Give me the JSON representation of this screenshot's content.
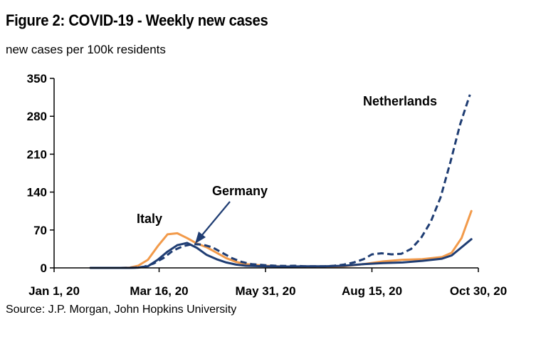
{
  "header": {
    "title": "Figure 2: COVID-19 - Weekly new cases",
    "subtitle": "new cases per 100k residents"
  },
  "footer": {
    "source": "Source: J.P. Morgan, John Hopkins University"
  },
  "colors": {
    "navy": "#1f3d73",
    "orange": "#f29a4a",
    "axis": "#000000"
  },
  "chart_data": {
    "type": "line",
    "x_axis": {
      "type": "date",
      "range": [
        "2020-01-01",
        "2020-10-30"
      ],
      "ticks": [
        {
          "date": "2020-01-01",
          "label": "Jan 1, 20"
        },
        {
          "date": "2020-03-16",
          "label": "Mar 16, 20"
        },
        {
          "date": "2020-05-31",
          "label": "May 31, 20"
        },
        {
          "date": "2020-08-15",
          "label": "Aug 15, 20"
        },
        {
          "date": "2020-10-30",
          "label": "Oct 30, 20"
        }
      ]
    },
    "y_axis": {
      "range": [
        0,
        350
      ],
      "ticks": [
        {
          "value": 0,
          "label": "0"
        },
        {
          "value": 70,
          "label": "70"
        },
        {
          "value": 140,
          "label": "140"
        },
        {
          "value": 210,
          "label": "210"
        },
        {
          "value": 280,
          "label": "280"
        },
        {
          "value": 350,
          "label": "350"
        }
      ]
    },
    "grid": false,
    "series": [
      {
        "name": "Netherlands",
        "color": "#1f3d73",
        "dash": true,
        "points": [
          [
            "2020-01-27",
            0
          ],
          [
            "2020-02-17",
            0
          ],
          [
            "2020-02-28",
            0.5
          ],
          [
            "2020-03-05",
            2
          ],
          [
            "2020-03-12",
            8
          ],
          [
            "2020-03-19",
            18
          ],
          [
            "2020-03-26",
            32
          ],
          [
            "2020-04-02",
            40
          ],
          [
            "2020-04-09",
            44
          ],
          [
            "2020-04-16",
            43
          ],
          [
            "2020-04-23",
            38
          ],
          [
            "2020-04-30",
            28
          ],
          [
            "2020-05-07",
            18
          ],
          [
            "2020-05-14",
            11
          ],
          [
            "2020-05-21",
            7
          ],
          [
            "2020-05-31",
            5
          ],
          [
            "2020-06-07",
            4
          ],
          [
            "2020-06-14",
            3.5
          ],
          [
            "2020-06-21",
            4
          ],
          [
            "2020-06-28",
            3
          ],
          [
            "2020-07-05",
            3
          ],
          [
            "2020-07-12",
            3
          ],
          [
            "2020-07-19",
            4
          ],
          [
            "2020-07-26",
            6
          ],
          [
            "2020-08-02",
            10
          ],
          [
            "2020-08-09",
            16
          ],
          [
            "2020-08-15",
            25
          ],
          [
            "2020-08-22",
            27
          ],
          [
            "2020-08-29",
            25
          ],
          [
            "2020-09-05",
            26
          ],
          [
            "2020-09-12",
            35
          ],
          [
            "2020-09-19",
            55
          ],
          [
            "2020-09-26",
            85
          ],
          [
            "2020-10-03",
            130
          ],
          [
            "2020-10-10",
            195
          ],
          [
            "2020-10-17",
            265
          ],
          [
            "2020-10-24",
            320
          ]
        ]
      },
      {
        "name": "Germany",
        "color": "#1f3d73",
        "dash": false,
        "points": [
          [
            "2020-01-27",
            0
          ],
          [
            "2020-02-24",
            0
          ],
          [
            "2020-03-01",
            0.5
          ],
          [
            "2020-03-08",
            3
          ],
          [
            "2020-03-15",
            15
          ],
          [
            "2020-03-22",
            30
          ],
          [
            "2020-03-29",
            42
          ],
          [
            "2020-04-05",
            46
          ],
          [
            "2020-04-12",
            37
          ],
          [
            "2020-04-19",
            24
          ],
          [
            "2020-04-26",
            16
          ],
          [
            "2020-05-03",
            10
          ],
          [
            "2020-05-10",
            6
          ],
          [
            "2020-05-17",
            4
          ],
          [
            "2020-05-31",
            3
          ],
          [
            "2020-06-14",
            2.5
          ],
          [
            "2020-06-28",
            3
          ],
          [
            "2020-07-12",
            3
          ],
          [
            "2020-07-26",
            4
          ],
          [
            "2020-08-09",
            7
          ],
          [
            "2020-08-23",
            9
          ],
          [
            "2020-09-06",
            10
          ],
          [
            "2020-09-20",
            13
          ],
          [
            "2020-10-04",
            17
          ],
          [
            "2020-10-11",
            23
          ],
          [
            "2020-10-18",
            38
          ],
          [
            "2020-10-25",
            53
          ]
        ]
      },
      {
        "name": "Italy",
        "color": "#f29a4a",
        "dash": false,
        "points": [
          [
            "2020-01-27",
            0
          ],
          [
            "2020-02-17",
            0
          ],
          [
            "2020-02-24",
            0.5
          ],
          [
            "2020-03-01",
            4
          ],
          [
            "2020-03-08",
            15
          ],
          [
            "2020-03-15",
            40
          ],
          [
            "2020-03-22",
            62
          ],
          [
            "2020-03-29",
            64
          ],
          [
            "2020-04-05",
            55
          ],
          [
            "2020-04-12",
            45
          ],
          [
            "2020-04-19",
            38
          ],
          [
            "2020-04-26",
            28
          ],
          [
            "2020-05-03",
            18
          ],
          [
            "2020-05-10",
            11
          ],
          [
            "2020-05-17",
            7
          ],
          [
            "2020-05-31",
            4
          ],
          [
            "2020-06-14",
            2.5
          ],
          [
            "2020-06-28",
            2
          ],
          [
            "2020-07-12",
            2
          ],
          [
            "2020-07-26",
            3
          ],
          [
            "2020-08-09",
            7
          ],
          [
            "2020-08-23",
            12
          ],
          [
            "2020-09-06",
            15
          ],
          [
            "2020-09-20",
            16
          ],
          [
            "2020-10-04",
            20
          ],
          [
            "2020-10-11",
            28
          ],
          [
            "2020-10-18",
            55
          ],
          [
            "2020-10-25",
            105
          ]
        ]
      }
    ],
    "annotations": [
      {
        "id": "netherlands",
        "text": "Netherlands"
      },
      {
        "id": "germany",
        "text": "Germany"
      },
      {
        "id": "italy",
        "text": "Italy"
      }
    ]
  }
}
